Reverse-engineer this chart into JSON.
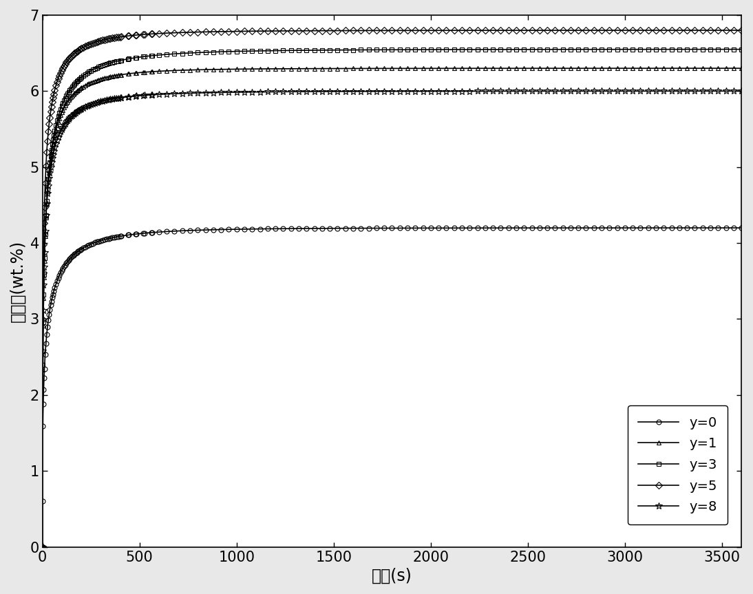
{
  "xlabel": "时间(s)",
  "ylabel": "收氢量(wt.%)",
  "xlim": [
    0,
    3600
  ],
  "ylim": [
    0,
    7
  ],
  "yticks": [
    0,
    1,
    2,
    3,
    4,
    5,
    6,
    7
  ],
  "xticks": [
    0,
    500,
    1000,
    1500,
    2000,
    2500,
    3000,
    3500
  ],
  "params": [
    {
      "label": "y=0",
      "marker": "o",
      "sat": 4.2,
      "k": 0.04,
      "beta": 0.45,
      "start": 0.6
    },
    {
      "label": "y=1",
      "marker": "^",
      "sat": 6.3,
      "k": 0.08,
      "beta": 0.42,
      "start": 0.0
    },
    {
      "label": "y=3",
      "marker": "s",
      "sat": 6.55,
      "k": 0.07,
      "beta": 0.4,
      "start": 0.0
    },
    {
      "label": "y=5",
      "marker": "D",
      "sat": 6.8,
      "k": 0.12,
      "beta": 0.38,
      "start": 0.0
    },
    {
      "label": "y=8",
      "marker": "*",
      "sat": 6.0,
      "k": 0.11,
      "beta": 0.38,
      "start": 0.0
    }
  ],
  "color": "#000000",
  "linewidth": 1.2,
  "marker_interval": 40,
  "ms_circle": 5,
  "ms_triangle": 5,
  "ms_square": 5,
  "ms_diamond": 5,
  "ms_star": 7,
  "font_size_label": 17,
  "font_size_tick": 15,
  "font_size_legend": 14,
  "background_color": "#ffffff",
  "figure_facecolor": "#e8e8e8"
}
